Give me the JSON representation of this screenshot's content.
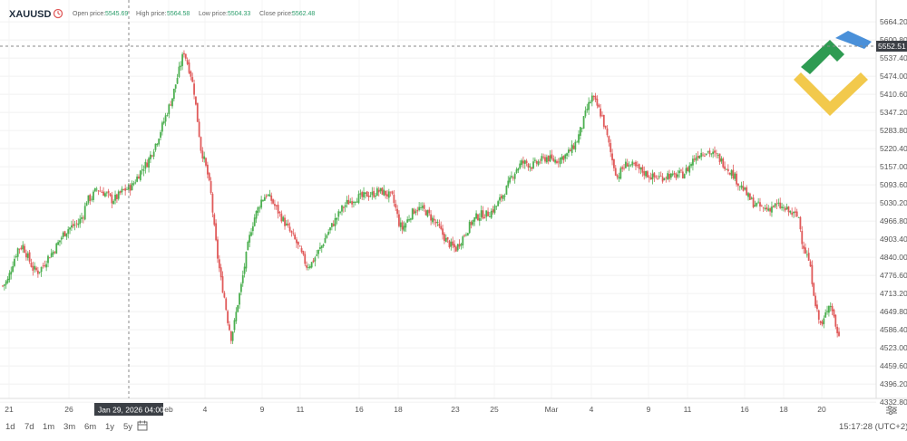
{
  "header": {
    "symbol": "XAUUSD",
    "open_label": "Open price:",
    "open_value": "5545.69",
    "high_label": "High price:",
    "high_value": "5564.58",
    "low_label": "Low price:",
    "low_value": "5504.33",
    "close_label": "Close price:",
    "close_value": "5562.48",
    "clock_icon": "clock-icon"
  },
  "crosshair": {
    "price_label": "5552.51",
    "date_label": "Jan 29, 2026 04:00"
  },
  "timeframes": [
    "1d",
    "7d",
    "1m",
    "3m",
    "6m",
    "1y",
    "5y"
  ],
  "calendar_icon": "calendar-icon",
  "settings_icon": "settings-icon",
  "footer": {
    "clock": "15:17:28 (UTC+2)"
  },
  "colors": {
    "up": "#4caf50",
    "down": "#e05a5a",
    "axis_label_bg": "#3b3f45"
  },
  "chart_data": {
    "type": "candlestick",
    "title": "XAUUSD",
    "ylim": [
      4333.2,
      5690
    ],
    "y_ticks": [
      "5664.20",
      "5600.80",
      "5537.40",
      "5474.00",
      "5410.60",
      "5347.20",
      "5283.80",
      "5220.40",
      "5157.00",
      "5093.60",
      "5030.20",
      "4966.80",
      "4903.40",
      "4840.00",
      "4776.60",
      "4713.20",
      "4649.80",
      "4586.40",
      "4523.00",
      "4459.60",
      "4396.20",
      "4332.80"
    ],
    "x_ticks": [
      "21",
      "26",
      "Jan 29, 2026 04:00",
      "eb",
      "4",
      "9",
      "11",
      "16",
      "18",
      "23",
      "25",
      "Mar",
      "4",
      "9",
      "11",
      "16",
      "18",
      "20"
    ],
    "close_path": [
      [
        0,
        4740
      ],
      [
        3,
        4760
      ],
      [
        6,
        4820
      ],
      [
        9,
        4870
      ],
      [
        12,
        4880
      ],
      [
        15,
        4840
      ],
      [
        18,
        4800
      ],
      [
        21,
        4790
      ],
      [
        24,
        4810
      ],
      [
        27,
        4840
      ],
      [
        30,
        4860
      ],
      [
        33,
        4890
      ],
      [
        36,
        4920
      ],
      [
        39,
        4940
      ],
      [
        42,
        4950
      ],
      [
        45,
        4960
      ],
      [
        48,
        4990
      ],
      [
        50,
        5040
      ],
      [
        53,
        5050
      ],
      [
        56,
        5080
      ],
      [
        59,
        5070
      ],
      [
        62,
        5060
      ],
      [
        65,
        5040
      ],
      [
        68,
        5050
      ],
      [
        71,
        5070
      ],
      [
        74,
        5080
      ],
      [
        77,
        5090
      ],
      [
        80,
        5120
      ],
      [
        83,
        5150
      ],
      [
        86,
        5170
      ],
      [
        89,
        5210
      ],
      [
        92,
        5250
      ],
      [
        95,
        5300
      ],
      [
        98,
        5350
      ],
      [
        101,
        5400
      ],
      [
        104,
        5470
      ],
      [
        107,
        5540
      ],
      [
        108,
        5560
      ],
      [
        110,
        5520
      ],
      [
        112,
        5480
      ],
      [
        114,
        5420
      ],
      [
        116,
        5320
      ],
      [
        118,
        5220
      ],
      [
        120,
        5180
      ],
      [
        122,
        5130
      ],
      [
        124,
        5060
      ],
      [
        126,
        4940
      ],
      [
        128,
        4840
      ],
      [
        130,
        4760
      ],
      [
        132,
        4700
      ],
      [
        134,
        4620
      ],
      [
        136,
        4560
      ],
      [
        138,
        4610
      ],
      [
        140,
        4680
      ],
      [
        142,
        4740
      ],
      [
        144,
        4810
      ],
      [
        146,
        4880
      ],
      [
        148,
        4940
      ],
      [
        150,
        4980
      ],
      [
        152,
        5010
      ],
      [
        154,
        5040
      ],
      [
        157,
        5060
      ],
      [
        160,
        5040
      ],
      [
        163,
        5010
      ],
      [
        166,
        4980
      ],
      [
        169,
        4950
      ],
      [
        172,
        4920
      ],
      [
        175,
        4890
      ],
      [
        178,
        4850
      ],
      [
        181,
        4810
      ],
      [
        184,
        4820
      ],
      [
        187,
        4850
      ],
      [
        190,
        4880
      ],
      [
        193,
        4920
      ],
      [
        196,
        4950
      ],
      [
        199,
        4980
      ],
      [
        202,
        5010
      ],
      [
        205,
        5030
      ],
      [
        208,
        5040
      ],
      [
        211,
        5050
      ],
      [
        214,
        5050
      ],
      [
        217,
        5060
      ],
      [
        220,
        5060
      ],
      [
        223,
        5070
      ],
      [
        226,
        5070
      ],
      [
        229,
        5060
      ],
      [
        232,
        5050
      ],
      [
        234,
        5010
      ],
      [
        236,
        4960
      ],
      [
        238,
        4940
      ],
      [
        240,
        4960
      ],
      [
        243,
        4990
      ],
      [
        246,
        5010
      ],
      [
        249,
        5010
      ],
      [
        252,
        5000
      ],
      [
        255,
        4980
      ],
      [
        258,
        4960
      ],
      [
        261,
        4930
      ],
      [
        264,
        4900
      ],
      [
        267,
        4880
      ],
      [
        270,
        4870
      ],
      [
        273,
        4900
      ],
      [
        276,
        4930
      ],
      [
        279,
        4960
      ],
      [
        282,
        4980
      ],
      [
        285,
        4990
      ],
      [
        288,
        4990
      ],
      [
        291,
        5000
      ],
      [
        294,
        5020
      ],
      [
        297,
        5050
      ],
      [
        300,
        5080
      ],
      [
        303,
        5120
      ],
      [
        306,
        5150
      ],
      [
        309,
        5170
      ],
      [
        312,
        5170
      ],
      [
        315,
        5160
      ],
      [
        318,
        5170
      ],
      [
        321,
        5180
      ],
      [
        324,
        5190
      ],
      [
        327,
        5180
      ],
      [
        330,
        5180
      ],
      [
        333,
        5190
      ],
      [
        336,
        5200
      ],
      [
        339,
        5220
      ],
      [
        342,
        5250
      ],
      [
        345,
        5300
      ],
      [
        348,
        5360
      ],
      [
        351,
        5400
      ],
      [
        354,
        5370
      ],
      [
        357,
        5330
      ],
      [
        360,
        5260
      ],
      [
        363,
        5180
      ],
      [
        366,
        5120
      ],
      [
        369,
        5150
      ],
      [
        372,
        5170
      ],
      [
        375,
        5160
      ],
      [
        378,
        5150
      ],
      [
        381,
        5140
      ],
      [
        384,
        5130
      ],
      [
        387,
        5120
      ],
      [
        390,
        5120
      ],
      [
        393,
        5120
      ],
      [
        396,
        5130
      ],
      [
        399,
        5120
      ],
      [
        402,
        5130
      ],
      [
        405,
        5130
      ],
      [
        408,
        5150
      ],
      [
        411,
        5180
      ],
      [
        414,
        5200
      ],
      [
        417,
        5210
      ],
      [
        420,
        5210
      ],
      [
        423,
        5200
      ],
      [
        426,
        5190
      ],
      [
        429,
        5170
      ],
      [
        432,
        5150
      ],
      [
        435,
        5130
      ],
      [
        438,
        5100
      ],
      [
        441,
        5080
      ],
      [
        444,
        5050
      ],
      [
        447,
        5030
      ],
      [
        450,
        5020
      ],
      [
        453,
        5010
      ],
      [
        456,
        5010
      ],
      [
        459,
        5020
      ],
      [
        462,
        5020
      ],
      [
        465,
        5010
      ],
      [
        468,
        5000
      ],
      [
        471,
        4990
      ],
      [
        474,
        4980
      ],
      [
        476,
        4900
      ],
      [
        478,
        4860
      ],
      [
        480,
        4830
      ],
      [
        482,
        4760
      ],
      [
        484,
        4680
      ],
      [
        486,
        4620
      ],
      [
        488,
        4600
      ],
      [
        490,
        4640
      ],
      [
        492,
        4680
      ],
      [
        494,
        4660
      ],
      [
        496,
        4600
      ],
      [
        498,
        4560
      ]
    ]
  }
}
